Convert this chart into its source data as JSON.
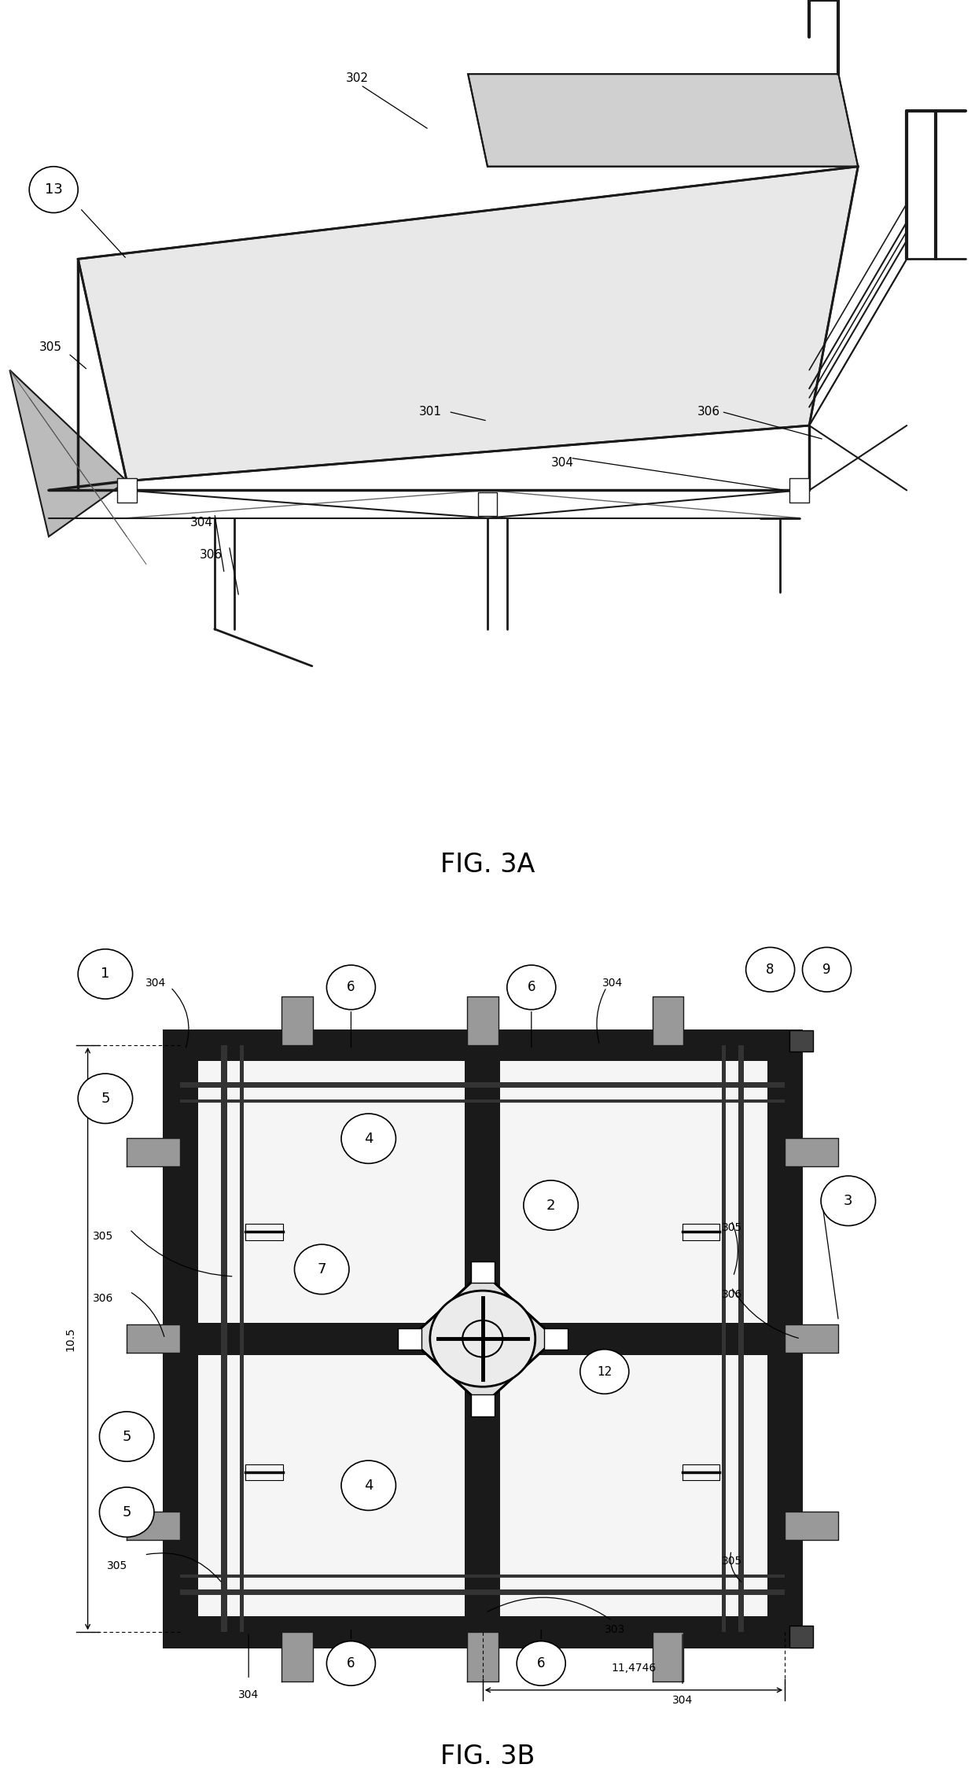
{
  "fig_width": 12.4,
  "fig_height": 22.62,
  "bg_color": "#ffffff",
  "line_color": "#1a1a1a",
  "fig3a_title": "FIG. 3A",
  "fig3b_title": "FIG. 3B"
}
